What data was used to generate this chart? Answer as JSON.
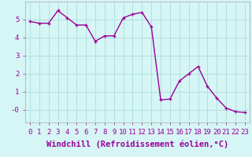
{
  "x": [
    0,
    1,
    2,
    3,
    4,
    5,
    6,
    7,
    8,
    9,
    10,
    11,
    12,
    13,
    14,
    15,
    16,
    17,
    18,
    19,
    20,
    21,
    22,
    23
  ],
  "y": [
    4.9,
    4.8,
    4.8,
    5.5,
    5.1,
    4.7,
    4.7,
    3.8,
    4.1,
    4.1,
    5.1,
    5.3,
    5.4,
    4.6,
    0.55,
    0.6,
    1.6,
    2.0,
    2.4,
    1.3,
    0.65,
    0.1,
    -0.1,
    -0.15
  ],
  "line_color": "#990099",
  "marker": "+",
  "marker_size": 3,
  "bg_color": "#d6f5f5",
  "grid_color": "#aadddd",
  "xlabel": "Windchill (Refroidissement éolien,°C)",
  "xlim": [
    -0.5,
    23.5
  ],
  "ylim": [
    -0.7,
    6.0
  ],
  "ytick_labels": [
    "-0",
    "1",
    "2",
    "3",
    "4",
    "5"
  ],
  "ytick_values": [
    0,
    1,
    2,
    3,
    4,
    5
  ],
  "xticks": [
    0,
    1,
    2,
    3,
    4,
    5,
    6,
    7,
    8,
    9,
    10,
    11,
    12,
    13,
    14,
    15,
    16,
    17,
    18,
    19,
    20,
    21,
    22,
    23
  ],
  "tick_fontsize": 6.5,
  "xlabel_fontsize": 7.5,
  "line_width": 1.0
}
